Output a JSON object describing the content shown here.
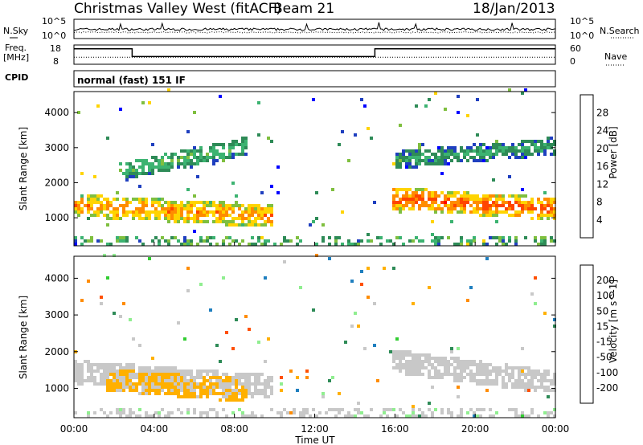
{
  "header": {
    "title": "Christmas Valley West (fitACF)",
    "beam": "Beam 21",
    "date": "18/Jan/2013"
  },
  "noise_panel": {
    "left_label": "N.Sky",
    "right_label": "N.Search",
    "left_ticks": [
      "10^5",
      "10^0"
    ],
    "right_ticks": [
      "10^5",
      "10^0"
    ]
  },
  "freq_panel": {
    "left_label_1": "Freq.",
    "left_label_2": "[MHz]",
    "right_label": "Nave",
    "left_ticks": [
      "18",
      "8"
    ],
    "right_ticks": [
      "60",
      "0"
    ]
  },
  "cpid_panel": {
    "label": "CPID",
    "text": "normal (fast) 151 IF"
  },
  "x_axis": {
    "label": "Time UT",
    "ticks": [
      "00:00",
      "04:00",
      "08:00",
      "12:00",
      "16:00",
      "20:00",
      "00:00"
    ]
  },
  "colors": {
    "power_scale": [
      "#0000ff",
      "#1f3fbf",
      "#2e8b57",
      "#3cb371",
      "#7fbf3f",
      "#ffd400",
      "#ff8c00",
      "#ff4500",
      "#ff0000"
    ],
    "velocity_scale": [
      "#ff0000",
      "#ff5000",
      "#ff8c00",
      "#ffb000",
      "#c8c8c8",
      "#c8c8c8",
      "#90ee90",
      "#32cd32",
      "#2e8b57",
      "#1f7fbf",
      "#0000ff"
    ]
  },
  "chart_data": [
    {
      "type": "line",
      "name": "noise",
      "x_range_hours": [
        0,
        24
      ],
      "ylabel": "N.Sky",
      "series": [
        {
          "name": "N.Sky",
          "description_value": "approximately constant near 10^1"
        },
        {
          "name": "N.Search",
          "description_value": "approximately constant near 10^0"
        }
      ]
    },
    {
      "type": "line",
      "name": "frequency",
      "x_range_hours": [
        0,
        24
      ],
      "ylabel": "Freq. [MHz]",
      "series": [
        {
          "name": "Freq.",
          "x": [
            0,
            2.9,
            2.9,
            15,
            15,
            24
          ],
          "y": [
            16,
            16,
            12,
            12,
            16,
            16
          ]
        },
        {
          "name": "Nave",
          "x": [
            0,
            2.9,
            2.9,
            15,
            15,
            24
          ],
          "y": [
            22,
            22,
            22,
            22,
            22,
            22
          ]
        }
      ]
    },
    {
      "type": "heatmap",
      "name": "power",
      "xlabel": "Time UT",
      "ylabel": "Slant Range [km]",
      "xlim": [
        0,
        24
      ],
      "ylim": [
        200,
        4600
      ],
      "yticks": [
        1000,
        2000,
        3000,
        4000
      ],
      "colorbar": {
        "label": "Power [dB]",
        "ticks": [
          4,
          8,
          12,
          16,
          20,
          24,
          28
        ],
        "range": [
          0,
          32
        ]
      },
      "features": [
        {
          "name": "morning-band",
          "t0": 0.0,
          "t1": 9.8,
          "r0": 1300,
          "r1": 1000,
          "power": 24
        },
        {
          "name": "evening-band",
          "t0": 15.8,
          "t1": 24.0,
          "r0": 1500,
          "r1": 1200,
          "power": 26
        },
        {
          "name": "upper-scatter",
          "t0": 2.5,
          "t1": 8.5,
          "r0": 2300,
          "r1": 3000,
          "power": 14
        },
        {
          "name": "late-upper",
          "t0": 16.0,
          "t1": 24.0,
          "r0": 2600,
          "r1": 3000,
          "power": 12
        }
      ]
    },
    {
      "type": "heatmap",
      "name": "velocity",
      "xlabel": "Time UT",
      "ylabel": "Slant Range [km]",
      "xlim": [
        0,
        24
      ],
      "ylim": [
        200,
        4600
      ],
      "yticks": [
        1000,
        2000,
        3000,
        4000
      ],
      "colorbar": {
        "label": "Velocity [m s^-1]",
        "ticks": [
          200,
          100,
          50,
          15,
          -15,
          -50,
          -100,
          -200
        ],
        "range": [
          -250,
          250
        ]
      },
      "features": [
        {
          "name": "morning-ground",
          "t0": 0.0,
          "t1": 9.8,
          "r0": 1400,
          "r1": 1000,
          "velocity": 0
        },
        {
          "name": "morning-orange",
          "t0": 1.5,
          "t1": 8.5,
          "r0": 1200,
          "r1": 900,
          "velocity": -80
        },
        {
          "name": "evening-ground",
          "t0": 15.8,
          "t1": 24.0,
          "r0": 1700,
          "r1": 1100,
          "velocity": 0
        }
      ]
    }
  ]
}
